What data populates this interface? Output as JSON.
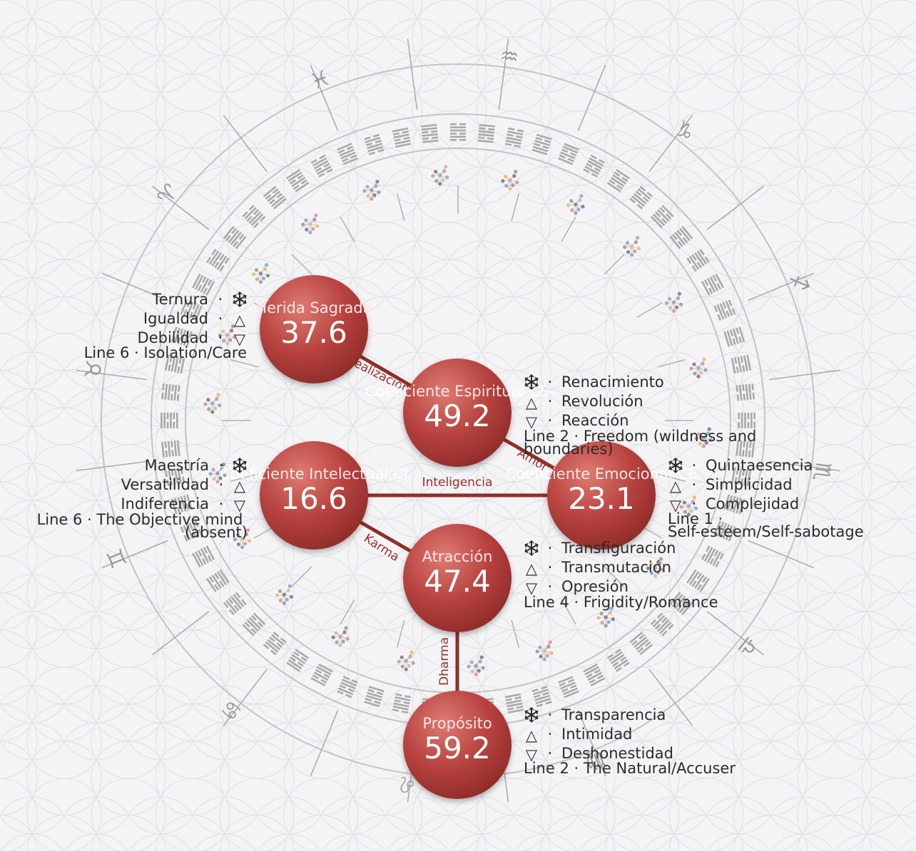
{
  "colors": {
    "background": "#f4f4f6",
    "node": "#b7423f",
    "node_highlight": "#de7b72",
    "edge": "#8f2e27",
    "edge_label": "#963028",
    "ring": "#bdbdbd",
    "text": "#2b2b2b"
  },
  "zodiac_signs": [
    "♓",
    "♒",
    "♑",
    "♐",
    "♏",
    "♎",
    "♍",
    "♌",
    "♋",
    "♊",
    "♉",
    "♈"
  ],
  "nodes": [
    {
      "id": "herida",
      "name": "Herida Sagrada",
      "value": "37.6",
      "gift": "Ternura",
      "virtue": "Igualdad",
      "shadow": "Debilidad",
      "line": "Line 6 · Isolation/Care"
    },
    {
      "id": "cs",
      "name": "Coeficiente Espiritual CS",
      "value": "49.2",
      "gift": "Renacimiento",
      "virtue": "Revolución",
      "shadow": "Reacción",
      "line": "Line 2 · Freedom (wildness and boundaries)"
    },
    {
      "id": "ci",
      "name": "Coeficiente Intelectual CI",
      "value": "16.6",
      "gift": "Maestría",
      "virtue": "Versatilidad",
      "shadow": "Indiferencia",
      "line": "Line 6 · The Objective mind (absent)"
    },
    {
      "id": "ce",
      "name": "Coeficiente Emocional CE",
      "value": "23.1",
      "gift": "Quintaesencia",
      "virtue": "Simplicidad",
      "shadow": "Complejidad",
      "line": "Line 1 · Self-esteem/Self-sabotage"
    },
    {
      "id": "atraccion",
      "name": "Atracción",
      "value": "47.4",
      "gift": "Transfiguración",
      "virtue": "Transmutación",
      "shadow": "Opresión",
      "line": "Line 4 · Frigidity/Romance"
    },
    {
      "id": "proposito",
      "name": "Propósito",
      "value": "59.2",
      "gift": "Transparencia",
      "virtue": "Intimidad",
      "shadow": "Deshonestidad",
      "line": "Line 2 · The Natural/Accuser"
    }
  ],
  "edges": [
    {
      "from": "herida",
      "to": "cs",
      "label": "Realización"
    },
    {
      "from": "cs",
      "to": "ce",
      "label": "Amor"
    },
    {
      "from": "ci",
      "to": "ce",
      "label": "Inteligencia"
    },
    {
      "from": "ci",
      "to": "atraccion",
      "label": "Karma"
    },
    {
      "from": "atraccion",
      "to": "proposito",
      "label": "Dharma"
    }
  ],
  "symbols": {
    "gift_icon": "snowflake-icon",
    "virtue_icon": "triangle-up-icon",
    "shadow_icon": "triangle-down-icon",
    "virtue_glyph": "△",
    "shadow_glyph": "▽",
    "separator": "·"
  }
}
